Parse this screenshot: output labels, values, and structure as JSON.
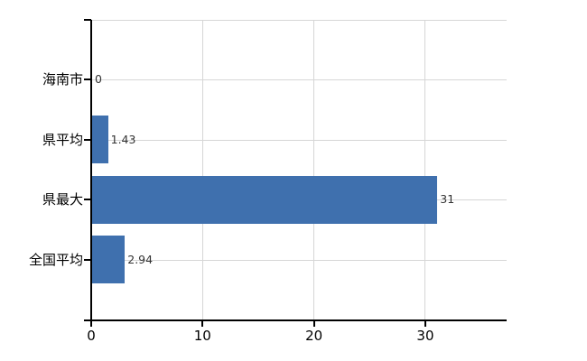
{
  "chart_data": {
    "type": "bar",
    "orientation": "horizontal",
    "title": "",
    "categories": [
      "海南市",
      "県平均",
      "県最大",
      "全国平均"
    ],
    "values": [
      0,
      1.43,
      31,
      2.94
    ],
    "value_labels": [
      "0",
      "1.43",
      "31",
      "2.94"
    ],
    "x_tick_labels": [
      "0",
      "10",
      "20",
      "30"
    ],
    "x_tick_values": [
      0,
      10,
      20,
      30
    ],
    "xlim": [
      0,
      37.3
    ],
    "grid": true,
    "legend": false,
    "colors": {
      "bar": "#3f70ae",
      "grid": "#d6d6d6",
      "axis": "#000000",
      "value_label": "#333333",
      "category_label": "#000000"
    }
  }
}
